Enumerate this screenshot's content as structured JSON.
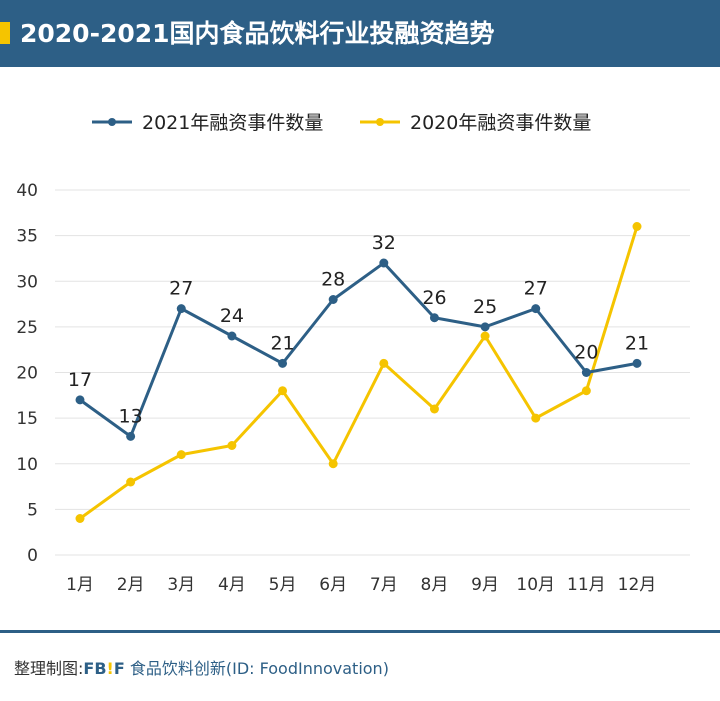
{
  "header": {
    "title": "2020-2021国内食品饮料行业投融资趋势"
  },
  "footer": {
    "prefix": "整理制图:",
    "brand_f": "FB",
    "brand_ex": "!",
    "brand_f2": "F",
    "source": "食品饮料创新(ID: FoodInnovation)"
  },
  "chart_data": {
    "type": "line",
    "title": "2020-2021国内食品饮料行业投融资趋势",
    "categories": [
      "1月",
      "2月",
      "3月",
      "4月",
      "5月",
      "6月",
      "7月",
      "8月",
      "9月",
      "10月",
      "11月",
      "12月"
    ],
    "series": [
      {
        "name": "2021年融资事件数量",
        "color": "#2d5f86",
        "values": [
          17,
          13,
          27,
          24,
          21,
          28,
          32,
          26,
          25,
          27,
          20,
          21
        ],
        "data_labels": true
      },
      {
        "name": "2020年融资事件数量",
        "color": "#f5c400",
        "values": [
          4,
          8,
          11,
          12,
          18,
          10,
          21,
          16,
          24,
          15,
          18,
          36
        ],
        "data_labels": false
      }
    ],
    "ylim": [
      0,
      40
    ],
    "yticks": [
      0,
      5,
      10,
      15,
      20,
      25,
      30,
      35,
      40
    ],
    "grid": true,
    "legend": "top"
  }
}
